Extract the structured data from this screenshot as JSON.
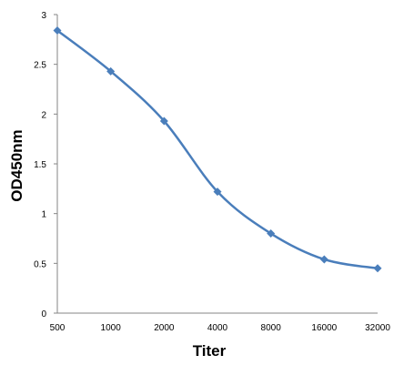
{
  "chart_data": {
    "type": "line",
    "xlabel": "Titer",
    "ylabel": "OD450nm",
    "categories": [
      "500",
      "1000",
      "2000",
      "4000",
      "8000",
      "16000",
      "32000"
    ],
    "series": [
      {
        "values": [
          2.84,
          2.43,
          1.93,
          1.22,
          0.8,
          0.54,
          0.45
        ]
      }
    ],
    "ylim": [
      0,
      3
    ],
    "yticks": [
      "0",
      "0.5",
      "1",
      "1.5",
      "2",
      "2.5",
      "3"
    ],
    "grid": false,
    "legend": "none",
    "line_color": "#4a7ebb",
    "axis_color": "#868686"
  }
}
